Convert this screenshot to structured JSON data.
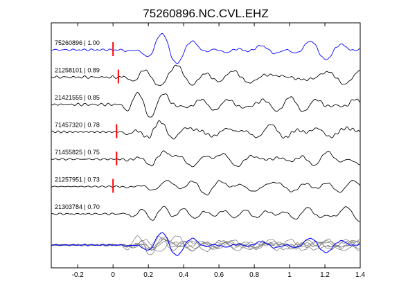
{
  "chart_data": {
    "type": "line",
    "title": "75260896.NC.CVL.EHZ",
    "xlabel": "",
    "ylabel": "",
    "xlim": [
      -0.35,
      1.4
    ],
    "xticks": [
      -0.2,
      0,
      0.2,
      0.4,
      0.6,
      0.8,
      1,
      1.2,
      1.4
    ],
    "xtick_labels": [
      "-0.2",
      "0",
      "0.2",
      "0.4",
      "0.6",
      "0.8",
      "1",
      "1.2",
      "1.4"
    ],
    "grid": false,
    "legend": "none",
    "colors": {
      "reference": "#0000ff",
      "other": "#000000",
      "stack_other": "#808080",
      "pick": "#ff0000"
    },
    "traces": [
      {
        "label": "75260896 | 1.00",
        "pick_time": 0.0,
        "color": "#0000ff"
      },
      {
        "label": "21258101 | 0.89",
        "pick_time": 0.03,
        "color": "#000000"
      },
      {
        "label": "21421555 | 0.85",
        "pick_time": null,
        "color": "#000000"
      },
      {
        "label": "71457320 | 0.78",
        "pick_time": 0.02,
        "color": "#000000"
      },
      {
        "label": "71455825 | 0.75",
        "pick_time": 0.02,
        "color": "#000000"
      },
      {
        "label": "21257951 | 0.73",
        "pick_time": 0.0,
        "color": "#000000"
      },
      {
        "label": "21303784 | 0.70",
        "pick_time": null,
        "color": "#000000"
      }
    ],
    "stack": {
      "label": "",
      "description": "overlay of all traces"
    }
  }
}
